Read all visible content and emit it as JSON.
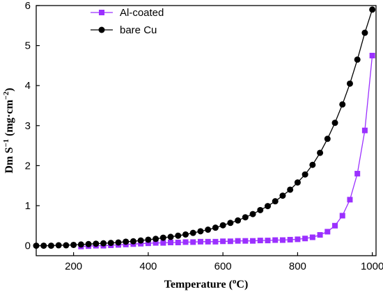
{
  "chart_data": {
    "type": "line",
    "xlabel_main": "Temperature (",
    "xlabel_sup": "o",
    "xlabel_end": "C)",
    "ylabel_a": "Dm S",
    "ylabel_sup1": "−1",
    "ylabel_b": " (mg·cm",
    "ylabel_sup2": "−2",
    "ylabel_c": ")",
    "xlim": [
      100,
      1010
    ],
    "ylim": [
      -0.25,
      6
    ],
    "xticks": [
      200,
      400,
      600,
      800,
      1000
    ],
    "yticks": [
      0,
      1,
      2,
      3,
      4,
      5,
      6
    ],
    "legend_position": "top-left",
    "series": [
      {
        "name": "Al-coated",
        "color": "#9b30ff",
        "marker": "square",
        "x": [
          220,
          240,
          260,
          280,
          300,
          320,
          340,
          360,
          380,
          400,
          420,
          440,
          460,
          480,
          500,
          520,
          540,
          560,
          580,
          600,
          620,
          640,
          660,
          680,
          700,
          720,
          740,
          760,
          780,
          800,
          820,
          840,
          860,
          880,
          900,
          920,
          940,
          960,
          980,
          1000
        ],
        "y": [
          -0.02,
          -0.01,
          0.0,
          0.0,
          0.01,
          0.02,
          0.03,
          0.04,
          0.05,
          0.06,
          0.07,
          0.07,
          0.08,
          0.08,
          0.09,
          0.09,
          0.1,
          0.1,
          0.1,
          0.11,
          0.11,
          0.12,
          0.12,
          0.12,
          0.13,
          0.13,
          0.14,
          0.14,
          0.15,
          0.16,
          0.18,
          0.21,
          0.27,
          0.35,
          0.5,
          0.75,
          1.15,
          1.8,
          2.88,
          4.75
        ]
      },
      {
        "name": "bare Cu",
        "color": "#000000",
        "marker": "circle",
        "x": [
          100,
          120,
          140,
          160,
          180,
          200,
          220,
          240,
          260,
          280,
          300,
          320,
          340,
          360,
          380,
          400,
          420,
          440,
          460,
          480,
          500,
          520,
          540,
          560,
          580,
          600,
          620,
          640,
          660,
          680,
          700,
          720,
          740,
          760,
          780,
          800,
          820,
          840,
          860,
          880,
          900,
          920,
          940,
          960,
          980,
          1000
        ],
        "y": [
          0.0,
          0.0,
          0.0,
          0.01,
          0.01,
          0.02,
          0.03,
          0.04,
          0.05,
          0.06,
          0.07,
          0.08,
          0.1,
          0.11,
          0.13,
          0.15,
          0.17,
          0.2,
          0.22,
          0.25,
          0.28,
          0.32,
          0.36,
          0.4,
          0.45,
          0.51,
          0.57,
          0.63,
          0.71,
          0.79,
          0.89,
          0.99,
          1.11,
          1.25,
          1.4,
          1.58,
          1.78,
          2.02,
          2.32,
          2.67,
          3.07,
          3.53,
          4.05,
          4.65,
          5.32,
          5.9
        ]
      }
    ]
  }
}
